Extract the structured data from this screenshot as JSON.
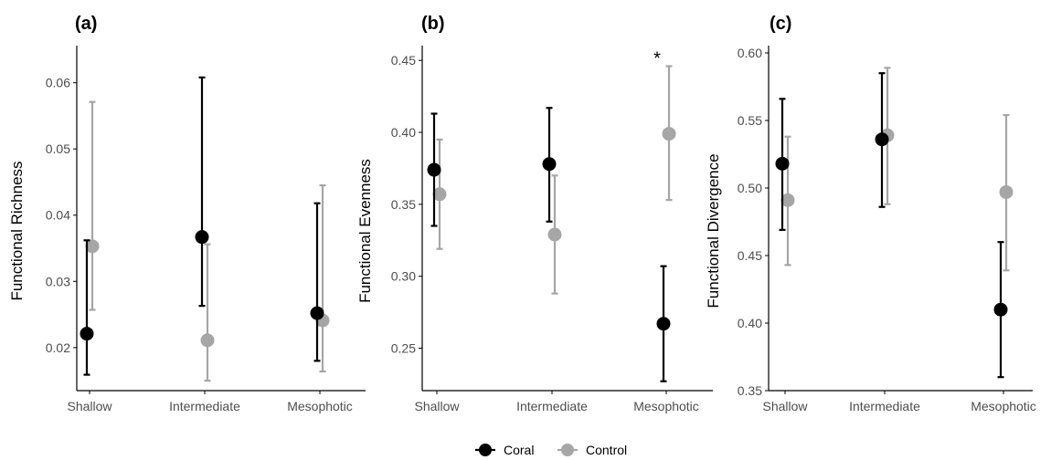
{
  "colors": {
    "coral": "#000000",
    "control": "#a6a6a6",
    "axis": "#000000",
    "tick_text": "#4d4d4d"
  },
  "legend": {
    "items": [
      {
        "label": "Coral",
        "key": "coral"
      },
      {
        "label": "Control",
        "key": "control"
      }
    ]
  },
  "chart_data": [
    {
      "panel_label": "(a)",
      "type": "scatter",
      "categories": [
        "Shallow",
        "Intermediate",
        "Mesophotic"
      ],
      "ylabel": "Functional Richness",
      "ylim": [
        0.0135,
        0.0645
      ],
      "yticks": [
        0.02,
        0.03,
        0.04,
        0.05,
        0.06
      ],
      "ytick_labels": [
        "0.02",
        "0.03",
        "0.04",
        "0.05",
        "0.06"
      ],
      "series": [
        {
          "name": "Coral",
          "color_key": "coral",
          "values": [
            0.0221,
            0.0367,
            0.0252
          ],
          "lower": [
            0.0159,
            0.0263,
            0.018
          ],
          "upper": [
            0.0362,
            0.0608,
            0.0418
          ]
        },
        {
          "name": "Control",
          "color_key": "control",
          "values": [
            0.0353,
            0.0211,
            0.0241
          ],
          "lower": [
            0.0257,
            0.015,
            0.0164
          ],
          "upper": [
            0.0571,
            0.0356,
            0.0445
          ]
        }
      ],
      "annotations": []
    },
    {
      "panel_label": "(b)",
      "type": "scatter",
      "categories": [
        "Shallow",
        "Intermediate",
        "Mesophotic"
      ],
      "ylabel": "Functional Evenness",
      "ylim": [
        0.2205,
        0.4552
      ],
      "yticks": [
        0.25,
        0.3,
        0.35,
        0.4,
        0.45
      ],
      "ytick_labels": [
        "0.25",
        "0.30",
        "0.35",
        "0.40",
        "0.45"
      ],
      "series": [
        {
          "name": "Coral",
          "color_key": "coral",
          "values": [
            0.374,
            0.378,
            0.267
          ],
          "lower": [
            0.335,
            0.338,
            0.227
          ],
          "upper": [
            0.413,
            0.417,
            0.307
          ]
        },
        {
          "name": "Control",
          "color_key": "control",
          "values": [
            0.357,
            0.329,
            0.399
          ],
          "lower": [
            0.319,
            0.288,
            0.353
          ],
          "upper": [
            0.395,
            0.37,
            0.446
          ]
        }
      ],
      "annotations": [
        {
          "category": "Mesophotic",
          "text": "*"
        }
      ]
    },
    {
      "panel_label": "(c)",
      "type": "scatter",
      "categories": [
        "Shallow",
        "Intermediate",
        "Mesophotic"
      ],
      "ylabel": "Functional Divergence",
      "ylim": [
        0.35,
        0.6
      ],
      "yticks": [
        0.35,
        0.4,
        0.45,
        0.5,
        0.55,
        0.6
      ],
      "ytick_labels": [
        "0.35",
        "0.40",
        "0.45",
        "0.50",
        "0.55",
        "0.60"
      ],
      "series": [
        {
          "name": "Coral",
          "color_key": "coral",
          "values": [
            0.518,
            0.536,
            0.41
          ],
          "lower": [
            0.469,
            0.486,
            0.36
          ],
          "upper": [
            0.566,
            0.585,
            0.46
          ]
        },
        {
          "name": "Control",
          "color_key": "control",
          "values": [
            0.491,
            0.539,
            0.497
          ],
          "lower": [
            0.443,
            0.488,
            0.439
          ],
          "upper": [
            0.538,
            0.589,
            0.554
          ]
        }
      ],
      "annotations": []
    }
  ]
}
